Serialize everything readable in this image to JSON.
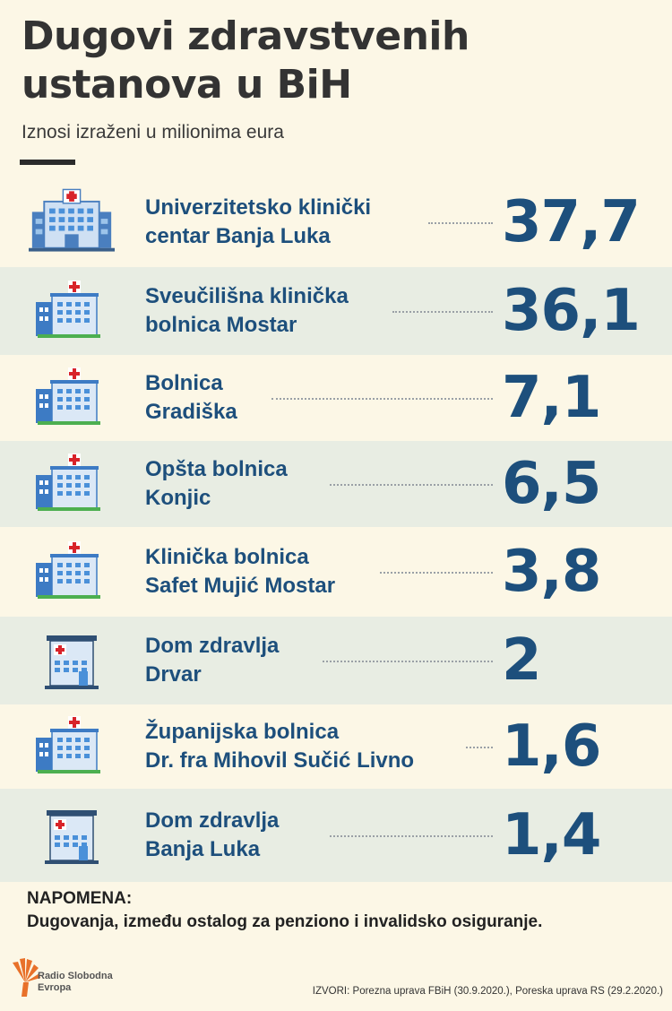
{
  "header": {
    "title_line1": "Dugovi zdravstvenih",
    "title_line2": "ustanova u BiH",
    "subtitle": "Iznosi izraženi u milionima eura"
  },
  "chart_data": {
    "type": "table",
    "title": "Dugovi zdravstvenih ustanova u BiH",
    "subtitle": "Iznosi izraženi u milionima eura",
    "rows": [
      {
        "name_line1": "Univerzitetsko klinički",
        "name_line2": "centar Banja Luka",
        "value": "37,7",
        "icon": "large-hospital-icon"
      },
      {
        "name_line1": "Sveučilišna klinička",
        "name_line2": "bolnica Mostar",
        "value": "36,1",
        "icon": "hospital-icon"
      },
      {
        "name_line1": "Bolnica",
        "name_line2": "Gradiška",
        "value": "7,1",
        "icon": "hospital-icon"
      },
      {
        "name_line1": "Opšta bolnica",
        "name_line2": "Konjic",
        "value": "6,5",
        "icon": "hospital-icon"
      },
      {
        "name_line1": "Klinička bolnica",
        "name_line2": "Safet Mujić Mostar",
        "value": "3,8",
        "icon": "hospital-icon"
      },
      {
        "name_line1": "Dom zdravlja",
        "name_line2": "Drvar",
        "value": "2",
        "icon": "health-center-icon"
      },
      {
        "name_line1": "Županijska bolnica",
        "name_line2": "Dr. fra Mihovil Sučić Livno",
        "value": "1,6",
        "icon": "hospital-icon"
      },
      {
        "name_line1": "Dom zdravlja",
        "name_line2": "Banja Luka",
        "value": "1,4",
        "icon": "health-center-icon"
      }
    ]
  },
  "note": {
    "title": "NAPOMENA:",
    "text": "Dugovanja, između ostalog za penziono i invalidsko osiguranje."
  },
  "logo": {
    "line1": "Radio Slobodna",
    "line2": "Evropa"
  },
  "sources": "IZVORI: Porezna uprava FBiH (30.9.2020.), Poreska uprava RS (29.2.2020.)",
  "colors": {
    "background": "#fcf7e6",
    "stripe": "#e8ede3",
    "text_blue": "#1d4f7c",
    "cross_red": "#d8232a",
    "logo_orange": "#e8712a"
  }
}
